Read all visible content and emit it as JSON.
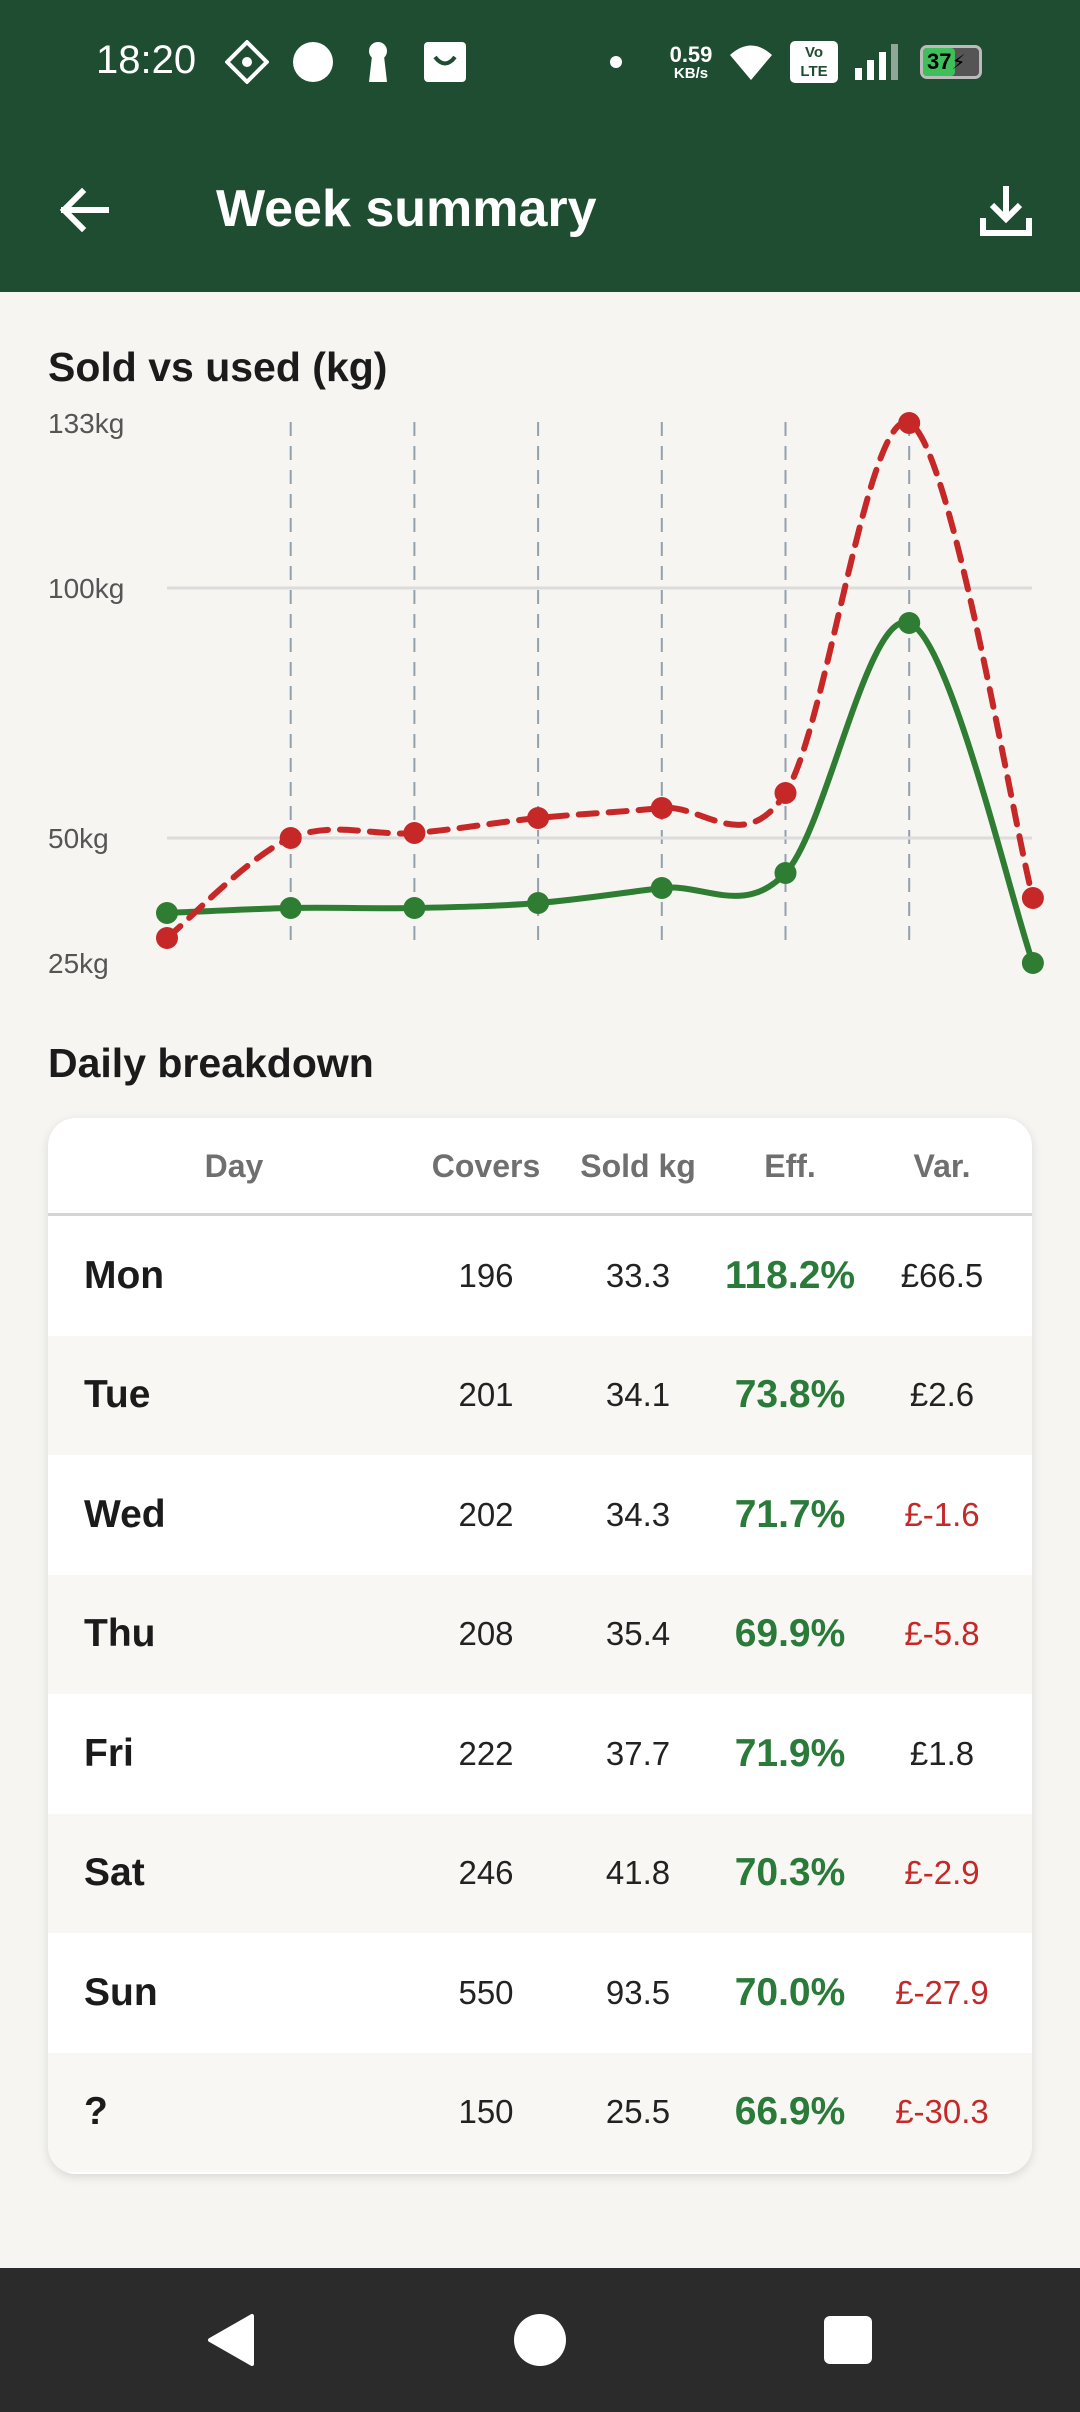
{
  "status_bar": {
    "time": "18:20",
    "net_speed": "0.59",
    "net_unit": "KB/s",
    "volte": "Vo LTE",
    "battery": "37"
  },
  "app_bar": {
    "title": "Week summary"
  },
  "chart_data": {
    "type": "line",
    "title": "Sold vs used (kg)",
    "y_ticks": [
      "133kg",
      "100kg",
      "50kg",
      "25kg"
    ],
    "ylim": [
      25,
      133
    ],
    "x": [
      1,
      2,
      3,
      4,
      5,
      6,
      7,
      8
    ],
    "grid": "dashed vertical lines at each point, solid horizontal lines at 50kg and 100kg",
    "series": [
      {
        "color": "#c62828",
        "style": "dashed",
        "values": [
          30,
          50,
          51,
          54,
          56,
          59,
          133,
          38
        ]
      },
      {
        "color": "#2e7d32",
        "style": "solid",
        "values": [
          35,
          36,
          36,
          37,
          40,
          43,
          93,
          25
        ]
      }
    ]
  },
  "breakdown": {
    "title": "Daily breakdown",
    "headers": [
      "Day",
      "Covers",
      "Sold kg",
      "Eff.",
      "Var."
    ],
    "rows": [
      {
        "day": "Mon",
        "covers": "196",
        "sold": "33.3",
        "eff": "118.2%",
        "var": "£66.5",
        "neg": false
      },
      {
        "day": "Tue",
        "covers": "201",
        "sold": "34.1",
        "eff": "73.8%",
        "var": "£2.6",
        "neg": false
      },
      {
        "day": "Wed",
        "covers": "202",
        "sold": "34.3",
        "eff": "71.7%",
        "var": "£-1.6",
        "neg": true
      },
      {
        "day": "Thu",
        "covers": "208",
        "sold": "35.4",
        "eff": "69.9%",
        "var": "£-5.8",
        "neg": true
      },
      {
        "day": "Fri",
        "covers": "222",
        "sold": "37.7",
        "eff": "71.9%",
        "var": "£1.8",
        "neg": false
      },
      {
        "day": "Sat",
        "covers": "246",
        "sold": "41.8",
        "eff": "70.3%",
        "var": "£-2.9",
        "neg": true
      },
      {
        "day": "Sun",
        "covers": "550",
        "sold": "93.5",
        "eff": "70.0%",
        "var": "£-27.9",
        "neg": true
      },
      {
        "day": "?",
        "covers": "150",
        "sold": "25.5",
        "eff": "66.9%",
        "var": "£-30.3",
        "neg": true
      }
    ]
  },
  "icons": {
    "back": "arrow-left-icon",
    "download": "download-icon",
    "nav_back": "triangle-back-icon",
    "nav_home": "circle-home-icon",
    "nav_recents": "square-recents-icon"
  }
}
